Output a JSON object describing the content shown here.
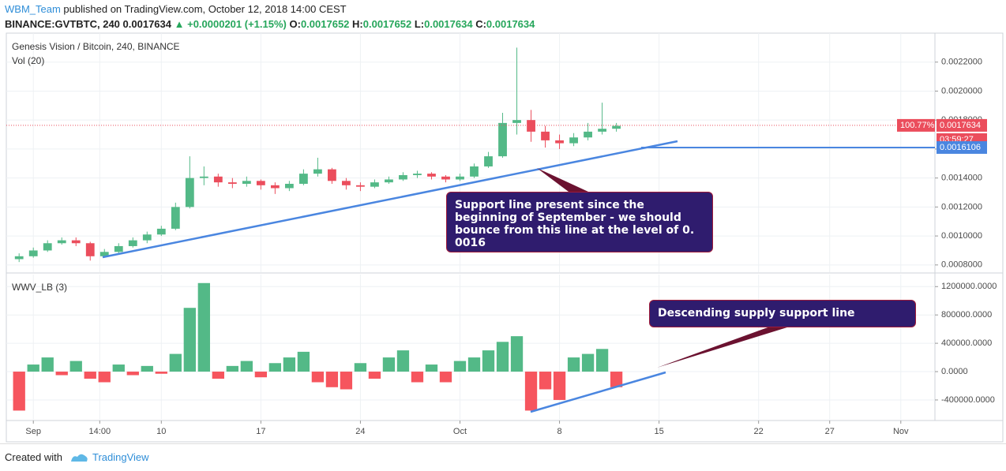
{
  "header": {
    "author": "WBM_Team",
    "published": "published on TradingView.com, October 12, 2018 14:00 CEST",
    "symbol": "BINANCE:GVTBTC, 240",
    "price": "0.0017634",
    "change": "▲ +0.0000201 (+1.15%)",
    "open_label": "O:",
    "open": "0.0017652",
    "high_label": "H:",
    "high": "0.0017652",
    "low_label": "L:",
    "low": "0.0017634",
    "close_label": "C:",
    "close": "0.0017634"
  },
  "chart_data": [
    {
      "type": "candlestick",
      "title": "Genesis Vision / Bitcoin, 240, BINANCE",
      "subtitle": "Vol (20)",
      "x": [
        -1,
        0,
        1,
        2,
        3,
        4,
        5,
        6,
        7,
        8,
        9,
        10,
        11,
        12,
        13,
        14,
        15,
        16,
        17,
        18,
        19,
        20,
        21,
        22,
        23,
        24,
        25,
        26,
        27,
        28,
        29,
        30,
        31,
        32,
        33,
        34,
        35,
        36,
        37,
        38,
        39,
        40,
        41
      ],
      "open": [
        0.00084,
        0.00086,
        0.0009,
        0.00095,
        0.00097,
        0.00095,
        0.00086,
        0.00089,
        0.00093,
        0.00097,
        0.00101,
        0.00105,
        0.0012,
        0.0014,
        0.00141,
        0.00137,
        0.00136,
        0.00138,
        0.00135,
        0.00133,
        0.00136,
        0.00143,
        0.00146,
        0.00138,
        0.00135,
        0.00134,
        0.00137,
        0.00139,
        0.00142,
        0.00143,
        0.00141,
        0.00139,
        0.00141,
        0.00148,
        0.00155,
        0.00178,
        0.0018,
        0.00172,
        0.00166,
        0.00164,
        0.00168,
        0.00172,
        0.00174
      ],
      "high": [
        0.00088,
        0.00092,
        0.00097,
        0.00099,
        0.00099,
        0.00096,
        0.00091,
        0.00095,
        0.00099,
        0.00103,
        0.00107,
        0.00123,
        0.00155,
        0.00148,
        0.00143,
        0.0014,
        0.00141,
        0.00139,
        0.00137,
        0.00138,
        0.00146,
        0.00154,
        0.00147,
        0.0014,
        0.00137,
        0.00139,
        0.00141,
        0.00144,
        0.00145,
        0.00144,
        0.00142,
        0.00143,
        0.0015,
        0.00158,
        0.00185,
        0.0023,
        0.00187,
        0.00176,
        0.0017,
        0.00171,
        0.00178,
        0.00192,
        0.00178
      ],
      "low": [
        0.00082,
        0.00085,
        0.00089,
        0.00094,
        0.00093,
        0.00083,
        0.00085,
        0.00088,
        0.00092,
        0.00095,
        0.001,
        0.00104,
        0.00119,
        0.00135,
        0.00134,
        0.00133,
        0.00134,
        0.00132,
        0.00129,
        0.00131,
        0.00135,
        0.00141,
        0.00136,
        0.00132,
        0.00131,
        0.00133,
        0.00136,
        0.00138,
        0.0014,
        0.00139,
        0.00137,
        0.00138,
        0.0014,
        0.00147,
        0.00154,
        0.0017,
        0.00165,
        0.00161,
        0.0016,
        0.00162,
        0.00166,
        0.0017,
        0.00172
      ],
      "close": [
        0.00086,
        0.0009,
        0.00095,
        0.00097,
        0.00095,
        0.00086,
        0.00089,
        0.00093,
        0.00097,
        0.00101,
        0.00105,
        0.0012,
        0.0014,
        0.00141,
        0.00137,
        0.00136,
        0.00138,
        0.00135,
        0.00133,
        0.00136,
        0.00143,
        0.00146,
        0.00138,
        0.00135,
        0.00134,
        0.00137,
        0.00139,
        0.00142,
        0.00143,
        0.00141,
        0.00139,
        0.00141,
        0.00148,
        0.00155,
        0.00178,
        0.0018,
        0.00172,
        0.00166,
        0.00164,
        0.00168,
        0.00172,
        0.00174,
        0.00176
      ],
      "up_color": "#53b987",
      "down_color": "#eb4d5c",
      "xlim": [
        -1.9,
        63.4
      ],
      "ylim": [
        0.00075,
        0.0024
      ],
      "yticks": [
        {
          "value": 0.0008,
          "label": "0.0008000"
        },
        {
          "value": 0.001,
          "label": "0.0010000"
        },
        {
          "value": 0.0012,
          "label": "0.0012000"
        },
        {
          "value": 0.0014,
          "label": "0.0014000"
        },
        {
          "value": 0.0016,
          "label": "0.0016000"
        },
        {
          "value": 0.0018,
          "label": "0.0018000"
        },
        {
          "value": 0.002,
          "label": "0.0020000"
        },
        {
          "value": 0.0022,
          "label": "0.0022000"
        }
      ],
      "grid": true,
      "last_price": {
        "value": 0.0017634,
        "label": "0.0017634"
      },
      "change_label": "100.77%",
      "countdown": "03:59:27",
      "price_line": {
        "value": 0.0016106,
        "label": "0.0016106"
      },
      "annotation": "Support line present since the beginning of September - we should bounce from this line at the level of 0. 0016"
    },
    {
      "type": "bar",
      "title": "WWV_LB (3)",
      "x": [
        -1,
        0,
        1,
        2,
        3,
        4,
        5,
        6,
        7,
        8,
        9,
        10,
        11,
        12,
        13,
        14,
        15,
        16,
        17,
        18,
        19,
        20,
        21,
        22,
        23,
        24,
        25,
        26,
        27,
        28,
        29,
        30,
        31,
        32,
        33,
        34,
        35,
        36,
        37,
        38,
        39,
        40,
        41
      ],
      "values": [
        -550000,
        100000,
        200000,
        -50000,
        150000,
        -100000,
        -150000,
        100000,
        -50000,
        80000,
        -30000,
        250000,
        900000,
        1250000,
        -100000,
        80000,
        150000,
        -80000,
        120000,
        200000,
        280000,
        -150000,
        -220000,
        -250000,
        120000,
        -100000,
        200000,
        300000,
        -150000,
        100000,
        -150000,
        150000,
        200000,
        300000,
        420000,
        500000,
        -550000,
        -250000,
        -400000,
        200000,
        250000,
        320000,
        -220000
      ],
      "up_color": "#53b987",
      "down_color": "#f6555e",
      "xlim": [
        -1.9,
        63.4
      ],
      "ylim": [
        -690000,
        1370000
      ],
      "yticks": [
        {
          "value": -400000,
          "label": "-400000.0000"
        },
        {
          "value": 0,
          "label": "0.0000"
        },
        {
          "value": 400000,
          "label": "400000.0000"
        },
        {
          "value": 800000,
          "label": "800000.0000"
        },
        {
          "value": 1200000,
          "label": "1200000.0000"
        }
      ],
      "xticks": [
        {
          "value": 0,
          "label": "Sep"
        },
        {
          "value": 4.67,
          "label": "14:00"
        },
        {
          "value": 9,
          "label": "10"
        },
        {
          "value": 16,
          "label": "17"
        },
        {
          "value": 23,
          "label": "24"
        },
        {
          "value": 30,
          "label": "Oct"
        },
        {
          "value": 37,
          "label": "8"
        },
        {
          "value": 44,
          "label": "15"
        },
        {
          "value": 51,
          "label": "22"
        },
        {
          "value": 56,
          "label": "27"
        },
        {
          "value": 61,
          "label": "Nov"
        }
      ],
      "grid": true,
      "annotation": "Descending supply support line"
    }
  ],
  "footer": {
    "created": "Created with",
    "brand": "TradingView"
  }
}
